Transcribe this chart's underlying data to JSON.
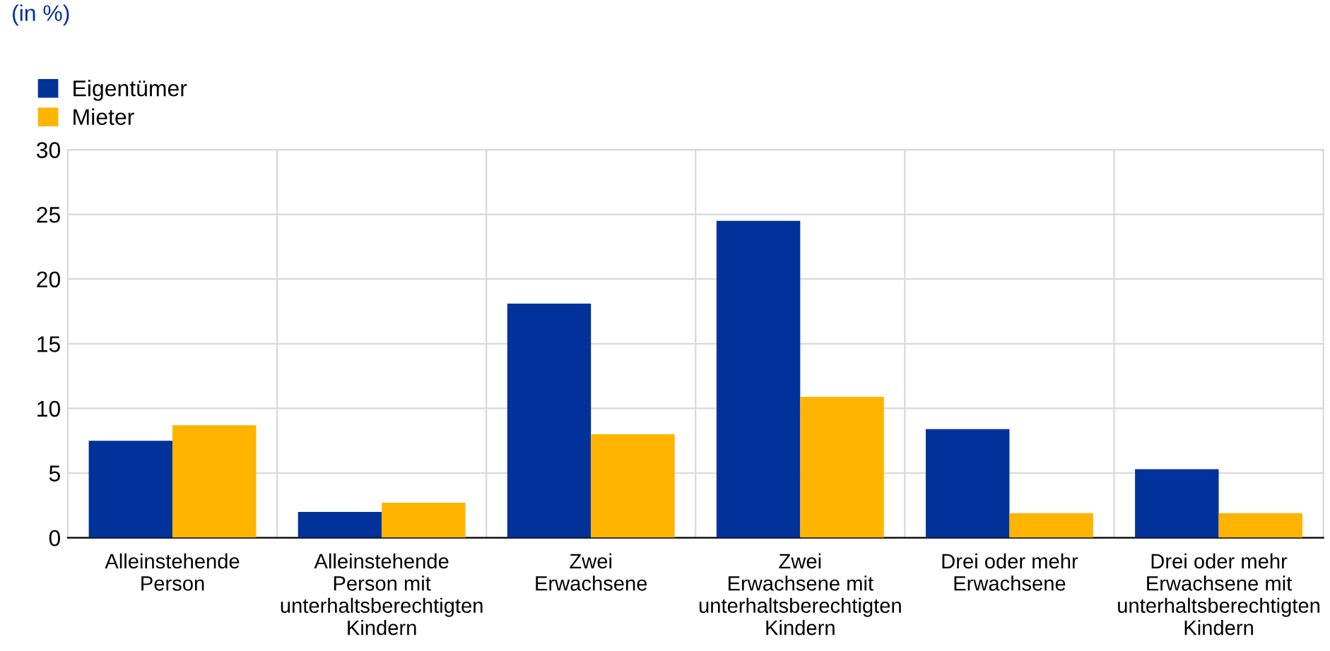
{
  "chart_data": {
    "type": "bar",
    "annotations": [
      "(in %)"
    ],
    "categories": [
      "Alleinstehende\nPerson",
      "Alleinstehende\nPerson mit\nunterhaltsberechtigten\nKindern",
      "Zwei\nErwachsene",
      "Zwei\nErwachsene mit\nunterhaltsberechtigten\nKindern",
      "Drei oder mehr\nErwachsene",
      "Drei oder mehr\nErwachsene mit\nunterhaltsberechtigten\nKindern"
    ],
    "series": [
      {
        "name": "Eigentümer",
        "color": "#003299",
        "values": [
          7.5,
          2.0,
          18.1,
          24.5,
          8.4,
          5.3
        ]
      },
      {
        "name": "Mieter",
        "color": "#ffb400",
        "values": [
          8.7,
          2.7,
          8.0,
          10.9,
          1.9,
          1.9
        ]
      }
    ],
    "ylim": [
      0,
      30
    ],
    "yticks": [
      0,
      5,
      10,
      15,
      20,
      25,
      30
    ],
    "grid": true,
    "legend": "top left"
  }
}
